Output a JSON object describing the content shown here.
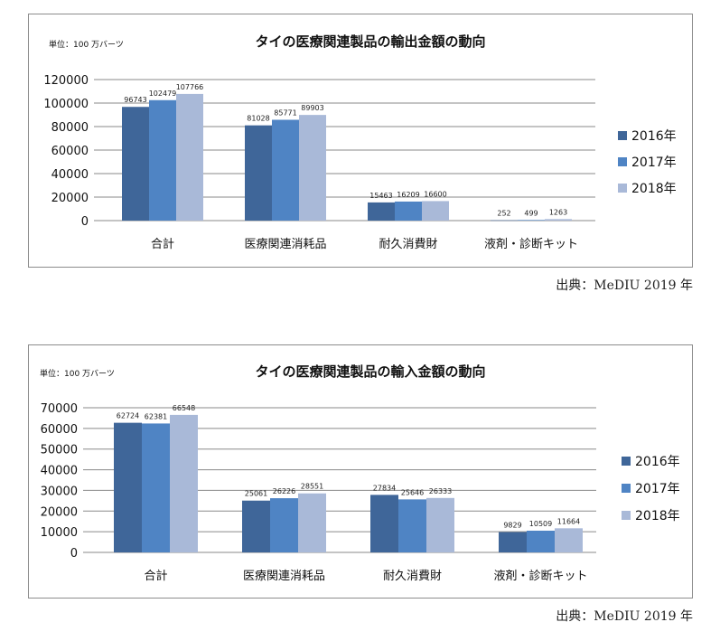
{
  "source_text": "出典：MeDIU 2019 年",
  "series_colors": [
    "#3f6699",
    "#4f84c4",
    "#a9b9d8"
  ],
  "chart_data": [
    {
      "type": "bar",
      "title": "タイの医療関連製品の輸出金額の動向",
      "unit": "単位：100 万バーツ",
      "categories": [
        "合計",
        "医療関連消耗品",
        "耐久消費財",
        "液剤・診断キット"
      ],
      "series": [
        {
          "name": "2016年",
          "values": [
            96743,
            81028,
            15463,
            252
          ]
        },
        {
          "name": "2017年",
          "values": [
            102479,
            85771,
            16209,
            499
          ]
        },
        {
          "name": "2018年",
          "values": [
            107766,
            89903,
            16600,
            1263
          ]
        }
      ],
      "ylim": [
        0,
        120000
      ],
      "yticks": [
        0,
        20000,
        40000,
        60000,
        80000,
        100000,
        120000
      ],
      "grid": true,
      "legend": "right"
    },
    {
      "type": "bar",
      "title": "タイの医療関連製品の輸入金額の動向",
      "unit": "単位：100 万バーツ",
      "categories": [
        "合計",
        "医療関連消耗品",
        "耐久消費財",
        "液剤・診断キット"
      ],
      "series": [
        {
          "name": "2016年",
          "values": [
            62724,
            25061,
            27834,
            9829
          ]
        },
        {
          "name": "2017年",
          "values": [
            62381,
            26226,
            25646,
            10509
          ]
        },
        {
          "name": "2018年",
          "values": [
            66548,
            28551,
            26333,
            11664
          ]
        }
      ],
      "ylim": [
        0,
        70000
      ],
      "yticks": [
        0,
        10000,
        20000,
        30000,
        40000,
        50000,
        60000,
        70000
      ],
      "grid": true,
      "legend": "right"
    }
  ]
}
